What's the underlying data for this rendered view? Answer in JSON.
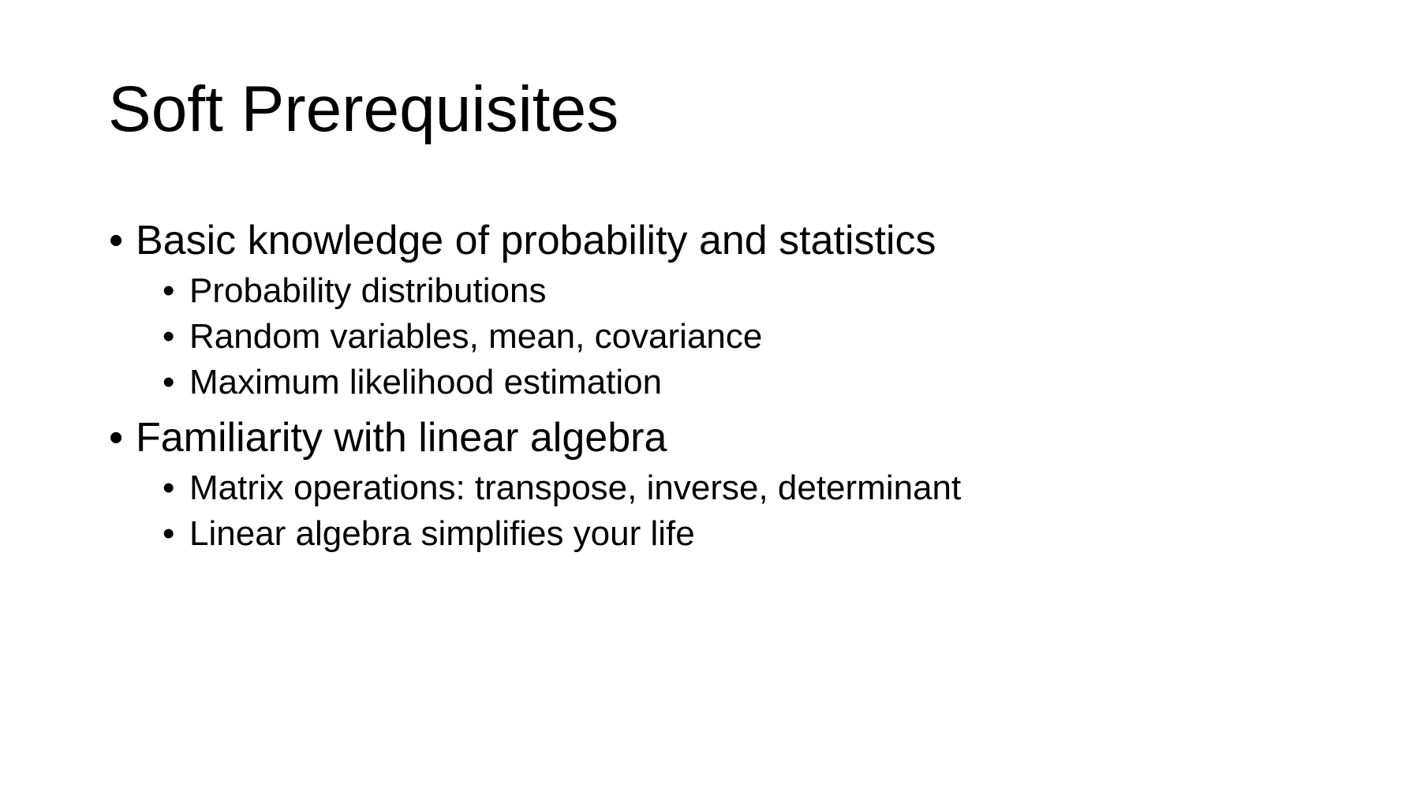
{
  "slide": {
    "title": "Soft Prerequisites",
    "bullet_glyph": "•",
    "sections": [
      {
        "text": "Basic knowledge of probability and statistics",
        "subitems": [
          "Probability distributions",
          "Random variables, mean, covariance",
          "Maximum likelihood estimation"
        ]
      },
      {
        "text": "Familiarity with linear algebra",
        "subitems": [
          "Matrix operations: transpose, inverse, determinant",
          "Linear algebra simplifies your life"
        ]
      }
    ]
  }
}
